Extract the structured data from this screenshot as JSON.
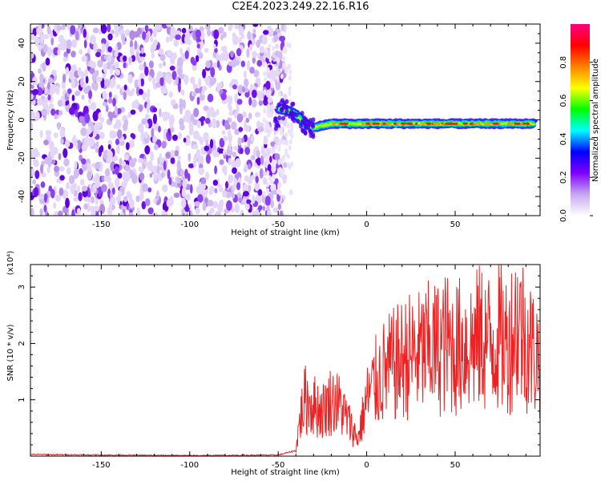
{
  "title": "C2E4.2023.249.22.16.R16",
  "chart_data": [
    {
      "type": "heatmap",
      "title": "C2E4.2023.249.22.16.R16",
      "xlabel": "Height of straight line (km)",
      "ylabel": "Frequency (Hz)",
      "xlim": [
        -190,
        98
      ],
      "ylim": [
        -50,
        50
      ],
      "xticks": [
        -150,
        -100,
        -50,
        0,
        50
      ],
      "yticks": [
        -40,
        -20,
        0,
        20,
        40
      ],
      "noise_region_x": [
        -190,
        -50
      ],
      "signal_track": {
        "x": [
          -50,
          -45,
          -40,
          -35,
          -30,
          -25,
          -20,
          0,
          25,
          50,
          75,
          95
        ],
        "freq": [
          6,
          5,
          3,
          -2,
          -4,
          -3,
          -2,
          -2,
          -2,
          -2,
          -2,
          -2
        ]
      },
      "colorbar": {
        "label": "Normalized spectral amplitude",
        "range": [
          0,
          1
        ],
        "ticks": [
          0.0,
          0.2,
          0.4,
          0.6,
          0.8
        ],
        "colors": [
          "#ffffff",
          "#c8a8f0",
          "#8000ff",
          "#0000ff",
          "#00ffff",
          "#00ff00",
          "#ffff00",
          "#ff8000",
          "#ff0000",
          "#ff0080"
        ]
      },
      "grid": false
    },
    {
      "type": "line",
      "xlabel": "Height of straight line (km)",
      "ylabel": "SNR (10 * v/v)",
      "y_multiplier": "(x10⁴)",
      "xlim": [
        -190,
        98
      ],
      "ylim": [
        0,
        3.4
      ],
      "xticks": [
        -150,
        -100,
        -50,
        0,
        50
      ],
      "yticks": [
        1,
        2,
        3
      ],
      "color": "#ee2222",
      "series": [
        {
          "x": [
            -190,
            -150,
            -100,
            -50,
            -40,
            -38,
            -35,
            -30,
            -25,
            -20,
            -15,
            -10,
            -5,
            0,
            5,
            10,
            15,
            20,
            25,
            30,
            35,
            40,
            45,
            50,
            55,
            60,
            65,
            70,
            75,
            80,
            85,
            90,
            95
          ],
          "y": [
            0.03,
            0.02,
            0.01,
            0.02,
            0.1,
            0.6,
            1.0,
            0.9,
            0.8,
            1.0,
            0.9,
            0.6,
            0.3,
            1.0,
            1.3,
            1.5,
            1.6,
            1.7,
            1.8,
            1.8,
            1.9,
            1.9,
            2.0,
            1.9,
            2.0,
            2.0,
            2.1,
            2.0,
            2.1,
            2.0,
            2.4,
            2.1,
            1.8
          ]
        }
      ],
      "grid": false
    }
  ]
}
